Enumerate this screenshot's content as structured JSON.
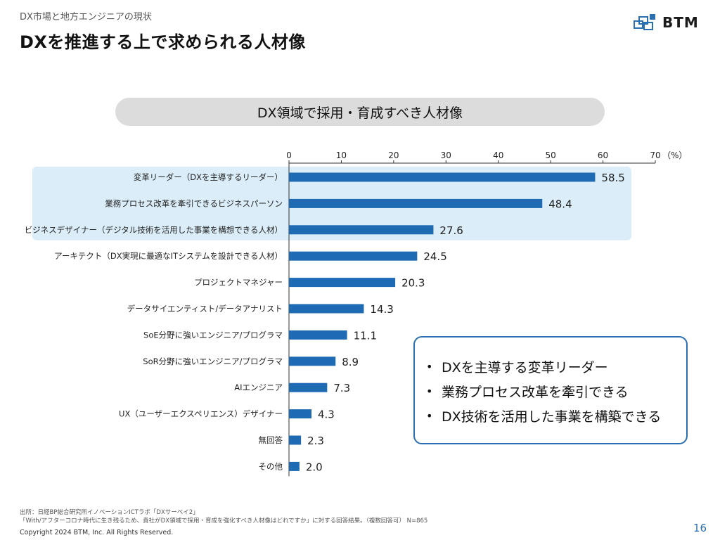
{
  "header": {
    "breadcrumb": "DX市場と地方エンジニアの現状",
    "title": "DXを推進する上で求められる人材像",
    "logo_text": "BTM"
  },
  "chart_data": {
    "type": "bar",
    "orientation": "horizontal",
    "title": "DX領域で採用・育成すべき人材像",
    "unit_label": "（%）",
    "xlim": [
      0,
      70
    ],
    "ticks": [
      0,
      10,
      20,
      30,
      40,
      50,
      60,
      70
    ],
    "categories": [
      "変革リーダー（DXを主導するリーダー）",
      "業務プロセス改革を牽引できるビジネスパーソン",
      "ビジネスデザイナー（デジタル技術を活用した事業を構想できる人材）",
      "アーキテクト（DX実現に最適なITシステムを設計できる人材）",
      "プロジェクトマネジャー",
      "データサイエンティスト/データアナリスト",
      "SoE分野に強いエンジニア/プログラマ",
      "SoR分野に強いエンジニア/プログラマ",
      "AIエンジニア",
      "UX（ユーザーエクスペリエンス）デザイナー",
      "無回答",
      "その他"
    ],
    "values": [
      58.5,
      48.4,
      27.6,
      24.5,
      20.3,
      14.3,
      11.1,
      8.9,
      7.3,
      4.3,
      2.3,
      2.0
    ],
    "value_labels": [
      "58.5",
      "48.4",
      "27.6",
      "24.5",
      "20.3",
      "14.3",
      "11.1",
      "8.9",
      "7.3",
      "4.3",
      "2.3",
      "2.0"
    ],
    "highlighted_count": 3,
    "grid": false,
    "colors": {
      "bar": "#1f6bb3",
      "highlight": "#daedf8",
      "axis": "#333333"
    }
  },
  "summary": {
    "items": [
      "DXを主導する変革リーダー",
      "業務プロセス改革を牽引できる",
      "DX技術を活用した事業を構築できる"
    ]
  },
  "footer": {
    "source_line1": "出所：日経BP総合研究所イノベーションICTラボ「DXサーベイ2」",
    "source_line2": "「With/アフターコロナ時代に生き残るため、貴社がDX領域で採用・育成を強化すべき人材像はどれですか」に対する回答結果。（複数回答可） N=865",
    "copyright": "Copyright 2024 BTM, Inc. All Rights Reserved.",
    "page_number": "16"
  }
}
